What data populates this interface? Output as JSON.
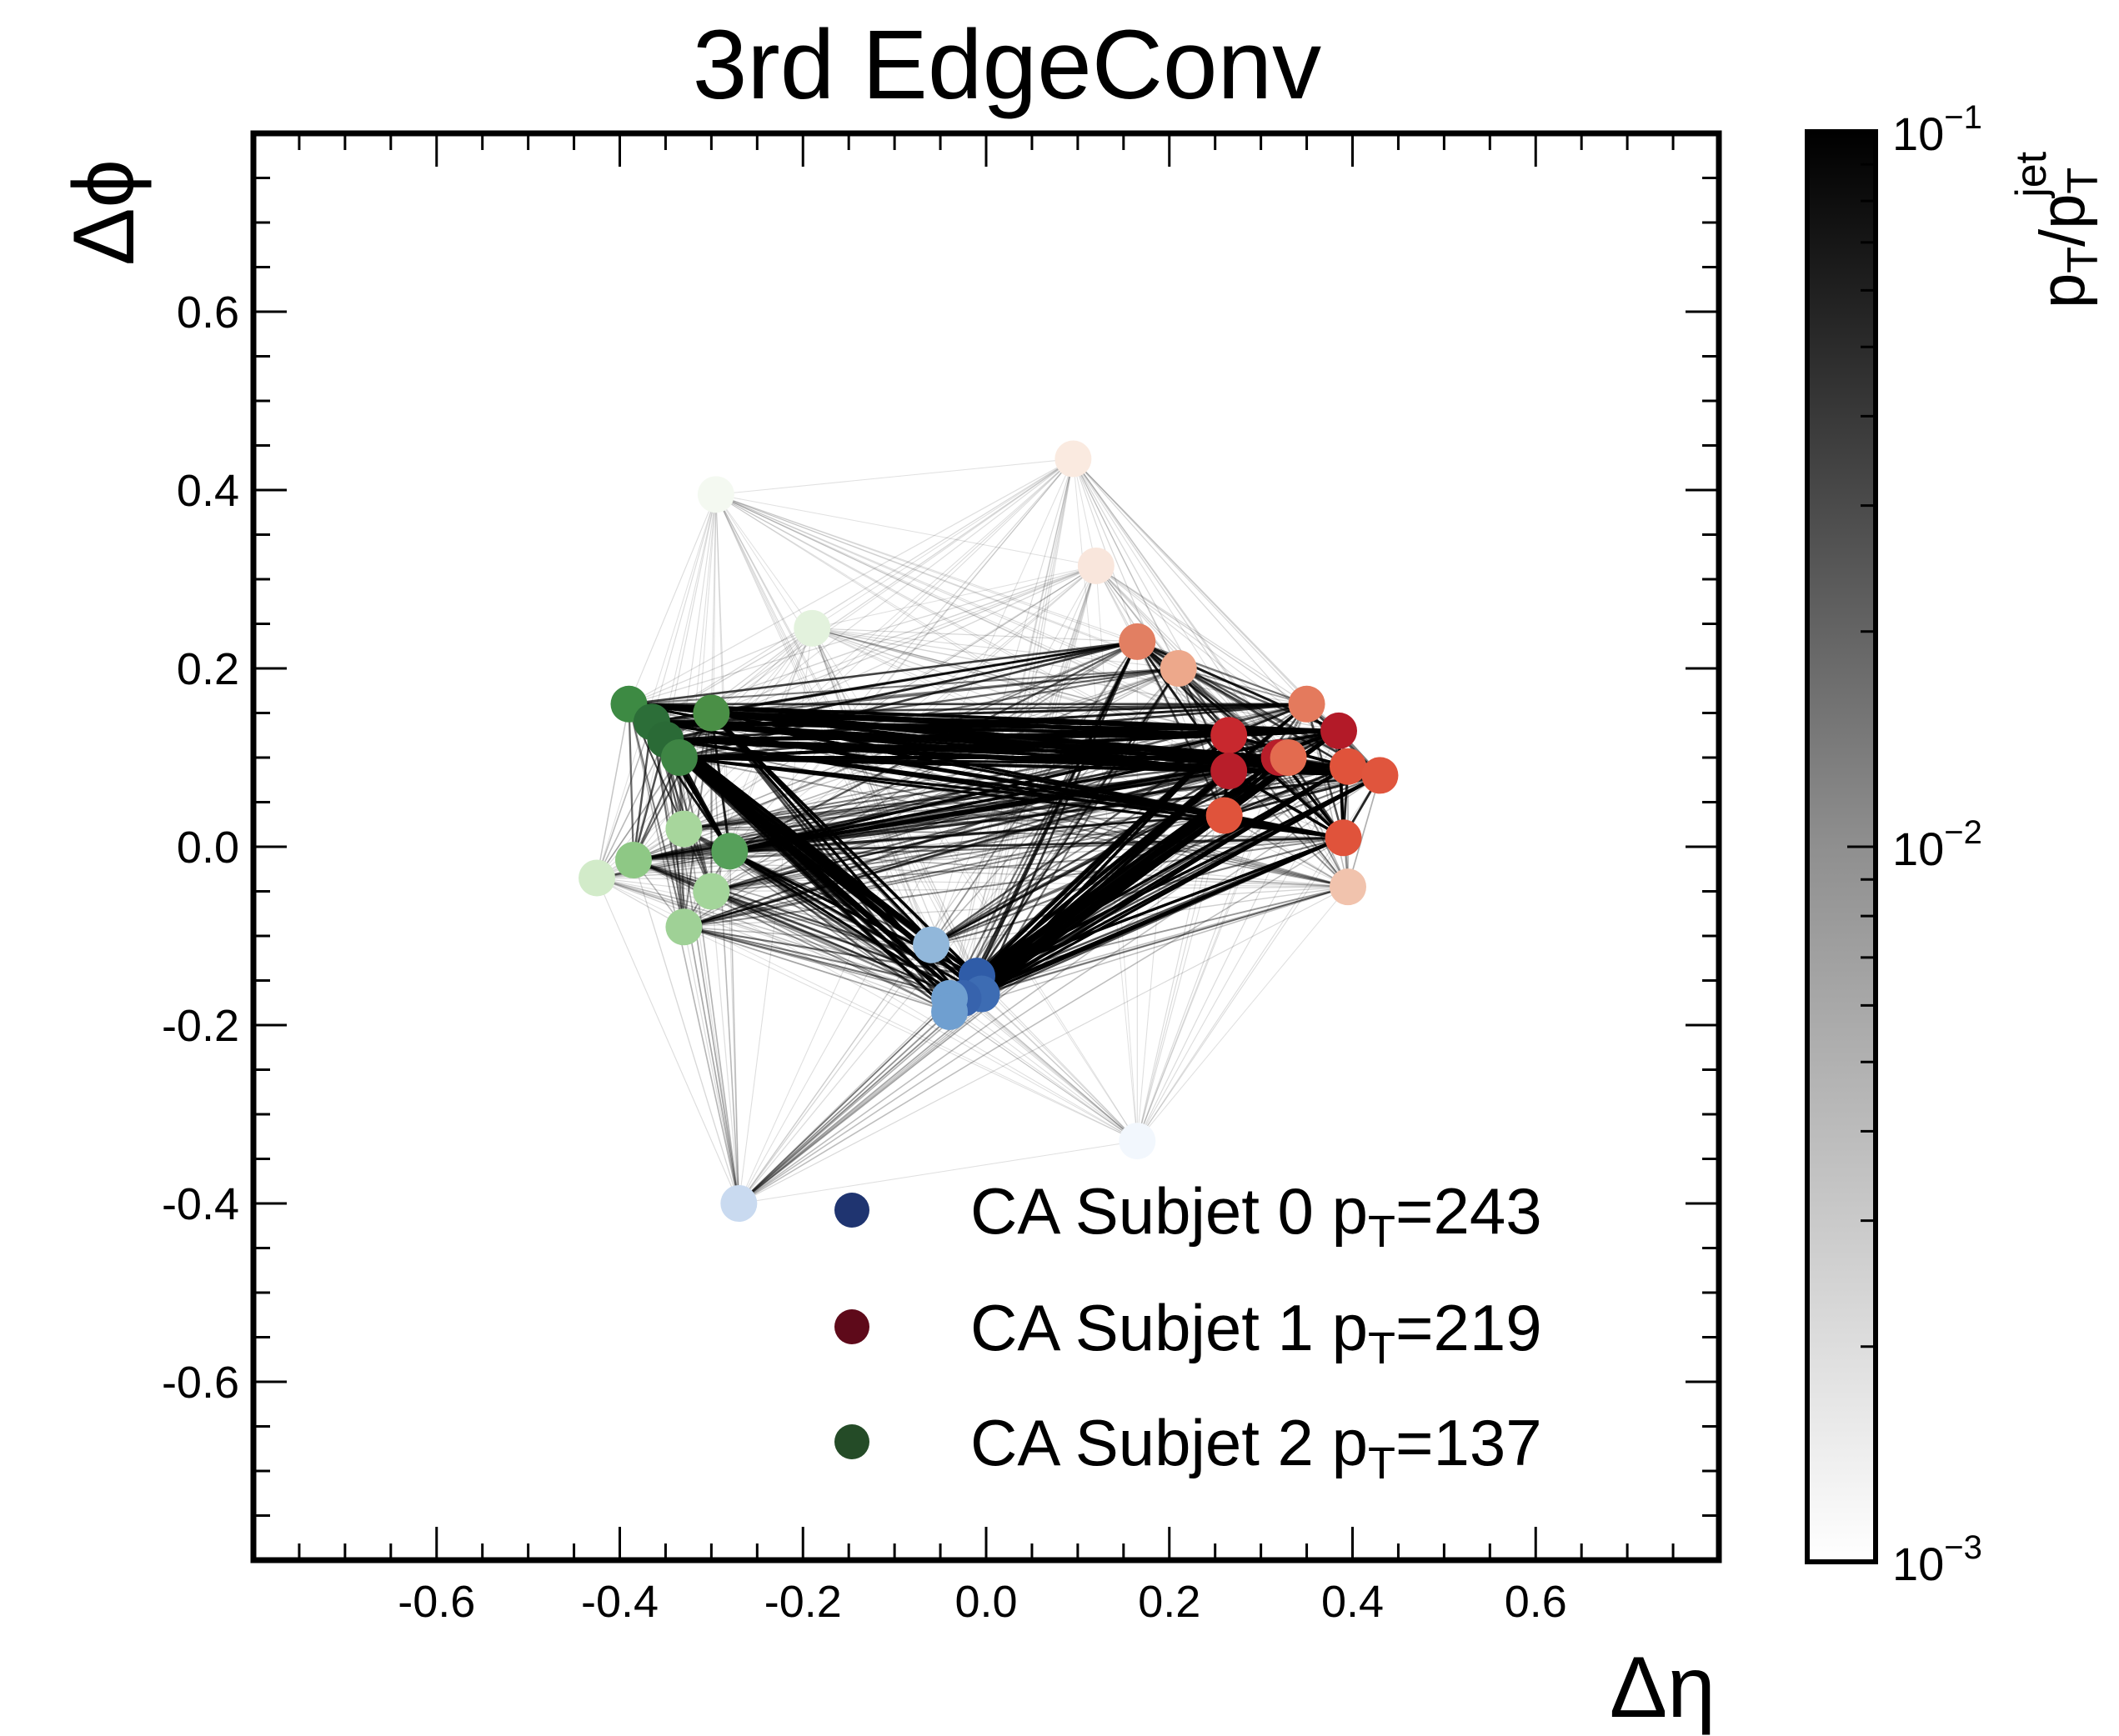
{
  "chart_data": {
    "type": "scatter",
    "title": "3rd EdgeConv",
    "xlabel": "Δη",
    "ylabel": "Δϕ",
    "xlim": [
      -0.8,
      0.8
    ],
    "ylim": [
      -0.8,
      0.8
    ],
    "xticks": [
      "-0.6",
      "-0.4",
      "-0.2",
      "0.0",
      "0.2",
      "0.4",
      "0.6"
    ],
    "yticks": [
      "0.6",
      "0.4",
      "0.2",
      "0.0",
      "-0.2",
      "-0.4",
      "-0.6"
    ],
    "xtick_values": [
      -0.6,
      -0.4,
      -0.2,
      0.0,
      0.2,
      0.4,
      0.6
    ],
    "ytick_values": [
      0.6,
      0.4,
      0.2,
      0.0,
      -0.2,
      -0.4,
      -0.6
    ],
    "colorbar": {
      "label_base": "p",
      "label_sub": "T",
      "label_mid": "/p",
      "label_sub2": "T",
      "label_sup2": "jet",
      "scale": "log",
      "range": [
        0.001,
        0.1
      ],
      "tick_base": "10",
      "tick_exps": [
        "−3",
        "−2",
        "−1"
      ],
      "tick_values": [
        0.001,
        0.01,
        0.1
      ]
    },
    "legend": {
      "placement": "lower-right",
      "entries": [
        {
          "prefix": "CA Subjet 0 p",
          "sub": "T",
          "suffix": "=243",
          "color": "#1f3470"
        },
        {
          "prefix": "CA Subjet 1 p",
          "sub": "T",
          "suffix": "=219",
          "color": "#5e0a1a"
        },
        {
          "prefix": "CA Subjet 2 p",
          "sub": "T",
          "suffix": "=137",
          "color": "#244b27"
        }
      ]
    },
    "series": [
      {
        "subjet": 0,
        "points": [
          {
            "x": -0.06,
            "y": -0.11,
            "color": "#91b7da"
          },
          {
            "x": -0.01,
            "y": -0.145,
            "color": "#2f5ca8"
          },
          {
            "x": -0.005,
            "y": -0.165,
            "color": "#3d6cb3"
          },
          {
            "x": -0.025,
            "y": -0.17,
            "color": "#3763ad"
          },
          {
            "x": -0.04,
            "y": -0.17,
            "color": "#6f9fd0"
          },
          {
            "x": -0.04,
            "y": -0.185,
            "color": "#6f9fd0"
          },
          {
            "x": -0.27,
            "y": -0.4,
            "color": "#c9daf0"
          },
          {
            "x": 0.165,
            "y": -0.33,
            "color": "#f2f7fd"
          }
        ]
      },
      {
        "subjet": 1,
        "points": [
          {
            "x": 0.095,
            "y": 0.435,
            "color": "#faeae0"
          },
          {
            "x": 0.12,
            "y": 0.315,
            "color": "#f9e6dc"
          },
          {
            "x": 0.165,
            "y": 0.23,
            "color": "#e27f62"
          },
          {
            "x": 0.21,
            "y": 0.2,
            "color": "#eda88b"
          },
          {
            "x": 0.35,
            "y": 0.16,
            "color": "#e47a5d"
          },
          {
            "x": 0.265,
            "y": 0.125,
            "color": "#c8282e"
          },
          {
            "x": 0.32,
            "y": 0.1,
            "color": "#b81e2a"
          },
          {
            "x": 0.385,
            "y": 0.13,
            "color": "#b31a28"
          },
          {
            "x": 0.265,
            "y": 0.085,
            "color": "#b81e2a"
          },
          {
            "x": 0.33,
            "y": 0.1,
            "color": "#e36b4f"
          },
          {
            "x": 0.395,
            "y": 0.09,
            "color": "#e0533b"
          },
          {
            "x": 0.43,
            "y": 0.08,
            "color": "#e0553d"
          },
          {
            "x": 0.26,
            "y": 0.035,
            "color": "#e0533b"
          },
          {
            "x": 0.39,
            "y": 0.01,
            "color": "#e0533b"
          },
          {
            "x": 0.395,
            "y": -0.045,
            "color": "#f1c3ad"
          }
        ]
      },
      {
        "subjet": 2,
        "points": [
          {
            "x": -0.39,
            "y": 0.16,
            "color": "#3d8a43"
          },
          {
            "x": -0.3,
            "y": 0.15,
            "color": "#4a8f46"
          },
          {
            "x": -0.365,
            "y": 0.14,
            "color": "#2c6e38"
          },
          {
            "x": -0.35,
            "y": 0.12,
            "color": "#2a6a36"
          },
          {
            "x": -0.335,
            "y": 0.1,
            "color": "#3e8544"
          },
          {
            "x": -0.19,
            "y": 0.245,
            "color": "#e3f2dd"
          },
          {
            "x": -0.295,
            "y": 0.395,
            "color": "#f4f9f1"
          },
          {
            "x": -0.33,
            "y": 0.02,
            "color": "#a7d69c"
          },
          {
            "x": -0.28,
            "y": -0.005,
            "color": "#56a05a"
          },
          {
            "x": -0.385,
            "y": -0.015,
            "color": "#8ec885"
          },
          {
            "x": -0.425,
            "y": -0.035,
            "color": "#d2ebc9"
          },
          {
            "x": -0.3,
            "y": -0.05,
            "color": "#a3d59a"
          },
          {
            "x": -0.33,
            "y": -0.09,
            "color": "#9fd196"
          }
        ]
      }
    ]
  }
}
